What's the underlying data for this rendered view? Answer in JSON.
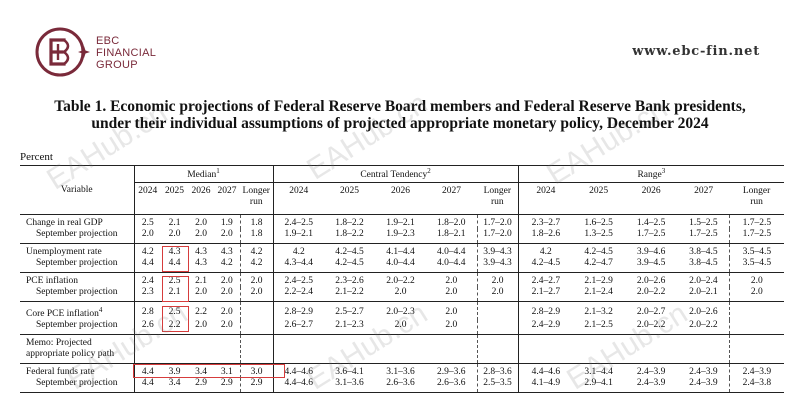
{
  "brand": {
    "line1": "EBC",
    "line2": "FINANCIAL",
    "line3": "GROUP",
    "website": "www.ebc-fin.net",
    "color": "#7a2a3a"
  },
  "title": {
    "line1": "Table 1. Economic projections of Federal Reserve Board members and Federal Reserve Bank presidents,",
    "line2": "under their individual assumptions of projected appropriate monetary policy, December 2024"
  },
  "unit": "Percent",
  "headers": {
    "variable": "Variable",
    "median": "Median",
    "median_note": "1",
    "central": "Central Tendency",
    "central_note": "2",
    "range": "Range",
    "range_note": "3",
    "years": [
      "2024",
      "2025",
      "2026",
      "2027"
    ],
    "longer_run": "Longer",
    "longer_run2": "run"
  },
  "rows": [
    {
      "label": "Change in real GDP",
      "label_sub": "September projection",
      "median": [
        "2.5",
        "2.1",
        "2.0",
        "1.9",
        "1.8"
      ],
      "median_sep": [
        "2.0",
        "2.0",
        "2.0",
        "2.0",
        "1.8"
      ],
      "central": [
        "2.4–2.5",
        "1.8–2.2",
        "1.9–2.1",
        "1.8–2.0",
        "1.7–2.0"
      ],
      "central_sep": [
        "1.9–2.1",
        "1.8–2.2",
        "1.9–2.3",
        "1.8–2.1",
        "1.7–2.0"
      ],
      "range": [
        "2.3–2.7",
        "1.6–2.5",
        "1.4–2.5",
        "1.5–2.5",
        "1.7–2.5"
      ],
      "range_sep": [
        "1.8–2.6",
        "1.3–2.5",
        "1.7–2.5",
        "1.7–2.5",
        "1.7–2.5"
      ]
    },
    {
      "label": "Unemployment rate",
      "label_sub": "September projection",
      "median": [
        "4.2",
        "4.3",
        "4.3",
        "4.3",
        "4.2"
      ],
      "median_sep": [
        "4.4",
        "4.4",
        "4.3",
        "4.2",
        "4.2"
      ],
      "central": [
        "4.2",
        "4.2–4.5",
        "4.1–4.4",
        "4.0–4.4",
        "3.9–4.3"
      ],
      "central_sep": [
        "4.3–4.4",
        "4.2–4.5",
        "4.0–4.4",
        "4.0–4.4",
        "3.9–4.3"
      ],
      "range": [
        "4.2",
        "4.2–4.5",
        "3.9–4.6",
        "3.8–4.5",
        "3.5–4.5"
      ],
      "range_sep": [
        "4.2–4.5",
        "4.2–4.7",
        "3.9–4.5",
        "3.8–4.5",
        "3.5–4.5"
      ]
    },
    {
      "label": "PCE inflation",
      "label_sub": "September projection",
      "median": [
        "2.4",
        "2.5",
        "2.1",
        "2.0",
        "2.0"
      ],
      "median_sep": [
        "2.3",
        "2.1",
        "2.0",
        "2.0",
        "2.0"
      ],
      "central": [
        "2.4–2.5",
        "2.3–2.6",
        "2.0–2.2",
        "2.0",
        "2.0"
      ],
      "central_sep": [
        "2.2–2.4",
        "2.1–2.2",
        "2.0",
        "2.0",
        "2.0"
      ],
      "range": [
        "2.4–2.7",
        "2.1–2.9",
        "2.0–2.6",
        "2.0–2.4",
        "2.0"
      ],
      "range_sep": [
        "2.1–2.7",
        "2.1–2.4",
        "2.0–2.2",
        "2.0–2.1",
        "2.0"
      ]
    },
    {
      "label": "Core PCE inflation",
      "label_note": "4",
      "label_sub": "September projection",
      "median": [
        "2.8",
        "2.5",
        "2.2",
        "2.0",
        ""
      ],
      "median_sep": [
        "2.6",
        "2.2",
        "2.0",
        "2.0",
        ""
      ],
      "central": [
        "2.8–2.9",
        "2.5–2.7",
        "2.0–2.3",
        "2.0",
        ""
      ],
      "central_sep": [
        "2.6–2.7",
        "2.1–2.3",
        "2.0",
        "2.0",
        ""
      ],
      "range": [
        "2.8–2.9",
        "2.1–3.2",
        "2.0–2.7",
        "2.0–2.6",
        ""
      ],
      "range_sep": [
        "2.4–2.9",
        "2.1–2.5",
        "2.0–2.2",
        "2.0–2.2",
        ""
      ]
    }
  ],
  "memo": {
    "line1": "Memo: Projected",
    "line2": "appropriate policy path"
  },
  "funds": {
    "label": "Federal funds rate",
    "label_sub": "September projection",
    "median": [
      "4.4",
      "3.9",
      "3.4",
      "3.1",
      "3.0"
    ],
    "median_sep": [
      "4.4",
      "3.4",
      "2.9",
      "2.9",
      "2.9"
    ],
    "central": [
      "4.4–4.6",
      "3.6–4.1",
      "3.1–3.6",
      "2.9–3.6",
      "2.8–3.6"
    ],
    "central_sep": [
      "4.4–4.6",
      "3.1–3.6",
      "2.6–3.6",
      "2.6–3.6",
      "2.5–3.5"
    ],
    "range": [
      "4.4–4.6",
      "3.1–4.4",
      "2.4–3.9",
      "2.4–3.9",
      "2.4–3.9"
    ],
    "range_sep": [
      "4.1–4.9",
      "2.9–4.1",
      "2.4–3.9",
      "2.4–3.9",
      "2.4–3.8"
    ]
  },
  "watermark": "EAHub.cn",
  "highlight_color": "#d63c3c"
}
